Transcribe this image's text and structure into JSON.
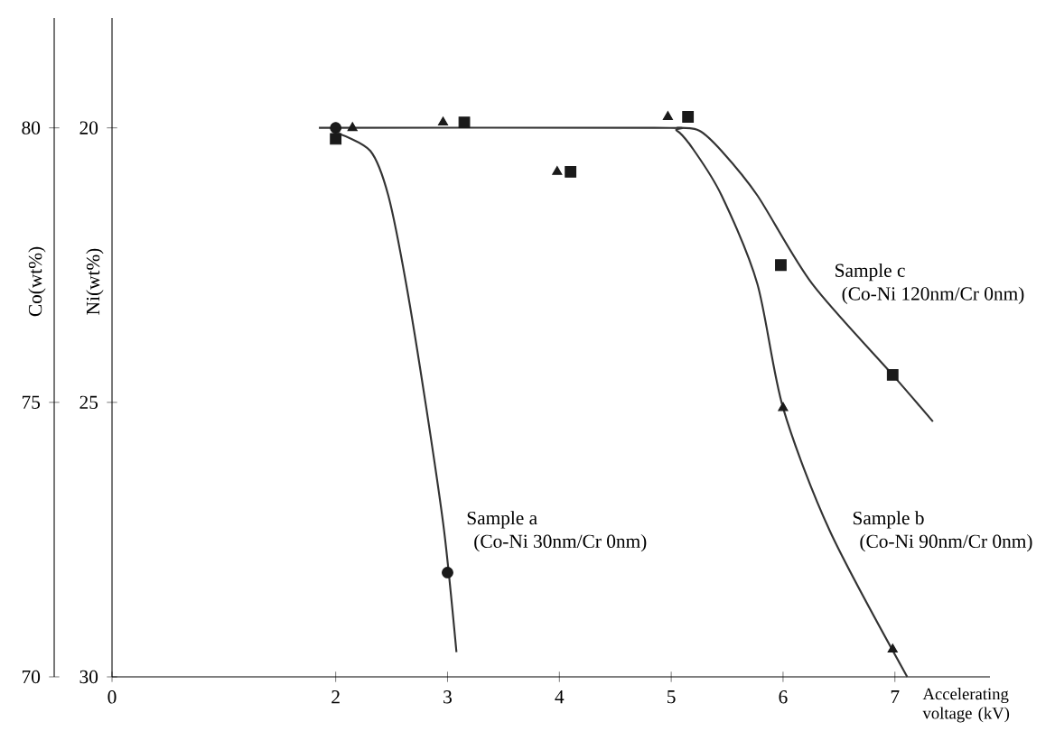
{
  "chart_data": {
    "type": "scatter",
    "xlabel": "Accelerating voltage (kV)",
    "ylabel": "Co(wt%)",
    "y2label": "Ni(wt%)",
    "xlim": [
      0,
      7.85
    ],
    "xticks": [
      0,
      2,
      3,
      4,
      5,
      6,
      7
    ],
    "ylim": [
      70,
      82
    ],
    "yticks": [
      70,
      75,
      80
    ],
    "y2lim": [
      30,
      18
    ],
    "y2ticks": [
      30,
      25,
      20
    ],
    "series": [
      {
        "color": "#1a1a1a",
        "marker": "circle",
        "x": [
          2,
          3
        ],
        "values": [
          80,
          71.9
        ]
      },
      {
        "color": "#1a1a1a",
        "marker": "triangle",
        "x": [
          2.15,
          2.96,
          3.98,
          4.97,
          6.0,
          6.98
        ],
        "values": [
          80,
          80.1,
          79.2,
          80.2,
          74.9,
          70.5
        ]
      },
      {
        "color": "#1a1a1a",
        "marker": "square",
        "x": [
          2.0,
          3.15,
          4.1,
          5.15,
          5.98,
          6.98
        ],
        "values": [
          79.8,
          80.1,
          79.2,
          80.2,
          77.5,
          75.5
        ]
      },
      {
        "type": "line",
        "name": "Sample a",
        "color": "#333333",
        "marker": "none",
        "x": [
          2.02,
          2.31,
          2.47,
          2.63,
          2.81,
          2.97,
          3.08
        ],
        "values": [
          79.9,
          79.58,
          78.77,
          77.16,
          74.9,
          72.65,
          70.45
        ]
      },
      {
        "type": "line",
        "name": "Sample b",
        "color": "#333333",
        "marker": "none",
        "x": [
          1.85,
          4.85,
          5.05,
          5.2,
          5.45,
          5.77,
          6.0,
          6.42,
          7.11
        ],
        "values": [
          80,
          80,
          79.95,
          79.6,
          78.77,
          77.16,
          74.9,
          72.65,
          70
        ]
      },
      {
        "type": "line",
        "name": "Sample c",
        "color": "#333333",
        "marker": "none",
        "x": [
          5.05,
          5.25,
          5.45,
          5.77,
          6.26,
          6.98,
          7.34
        ],
        "values": [
          80,
          79.95,
          79.58,
          78.77,
          77.16,
          75.5,
          74.65
        ]
      }
    ],
    "annotations": [
      "(Co-Ni 30nm/Cr 0nm)",
      "(Co-Ni 90nm/Cr 0nm)",
      "(Co-Ni 120nm/Cr 0nm)"
    ]
  }
}
